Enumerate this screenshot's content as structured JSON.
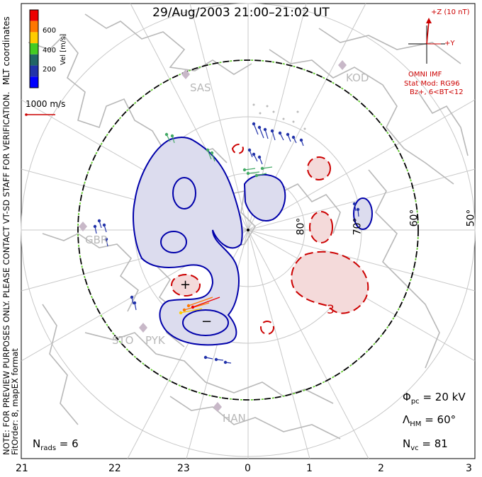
{
  "title": "29/Aug/2003  21:00–21:02  UT",
  "colorbar": {
    "ticks": [
      "600",
      "400",
      "200"
    ],
    "unit_label": "Vel [m/s]",
    "coords_label": "MLT coordinates",
    "colors": [
      "#ee0000",
      "#ff7700",
      "#ffcc00",
      "#44cc22",
      "#226666",
      "#2233aa",
      "#0000ff"
    ]
  },
  "reference_vector": "1000 m/s",
  "notice": "NOTE: FOR PREVIEW PURPOSES ONLY. PLEASE CONTACT VT-SD STAFF FOR VERIFICATION.",
  "fit_order": "FitOrder: 8, mapEX format",
  "imf": {
    "z_label": "+Z (10 nT)",
    "y_label": "+Y",
    "source": "OMNI IMF",
    "model": "Stat Mod: RG96",
    "condition": "Bz+, 6<BT<12"
  },
  "stations": [
    "SAS",
    "KOD",
    "GBR",
    "STO",
    "PYK",
    "HAN"
  ],
  "latitude_labels": [
    "80°",
    "70°",
    "60°",
    "50°"
  ],
  "mlt_labels": [
    "21",
    "22",
    "23",
    "0",
    "1",
    "2",
    "3"
  ],
  "symbols": {
    "plus": "+",
    "minus": "−",
    "contour_value": "3"
  },
  "stats": {
    "phi_pc": {
      "label": "Φ",
      "sub": "pc",
      "value": " = 20 kV"
    },
    "lambda_hm": {
      "label": "Λ",
      "sub": "HM",
      "value": " = 60°"
    },
    "n_vc": {
      "label": "N",
      "sub": "vc",
      "value": " = 81"
    },
    "n_rads": {
      "label": "N",
      "sub": "rads",
      "value": " = 6"
    }
  },
  "colors": {
    "negative_cell_fill": "#dcdcee",
    "negative_cell_line": "#0000aa",
    "positive_cell_fill": "#f4dada",
    "positive_cell_line": "#cc0000",
    "grid": "#c8c8c8",
    "coastline": "#b8b8b8",
    "boundary_green": "#66cc33"
  }
}
